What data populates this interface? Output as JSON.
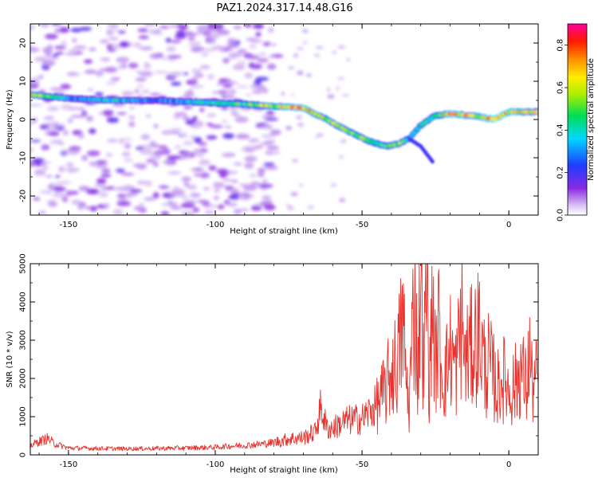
{
  "title": "PAZ1.2024.317.14.48.G16",
  "chart_data": [
    {
      "type": "heatmap",
      "xlabel": "Height of straight line (km)",
      "ylabel": "Frequency (Hz)",
      "xlim": [
        -163,
        10
      ],
      "ylim": [
        -25,
        25
      ],
      "xticks": [
        -150,
        -100,
        -50,
        0
      ],
      "yticks": [
        -20,
        -10,
        0,
        10,
        20
      ],
      "colorbar": {
        "label": "Normalized spectral amplitude",
        "range": [
          0,
          0.9
        ],
        "ticks": [
          0.0,
          0.2,
          0.4,
          0.6,
          0.8
        ],
        "colormap": "rainbow (white-violet-blue-cyan-green-yellow-orange-red-magenta)"
      },
      "noise_region_x": [
        -163,
        -79
      ],
      "ridge": {
        "x": [
          -163,
          -150,
          -135,
          -120,
          -105,
          -90,
          -80,
          -70,
          -62,
          -55,
          -48,
          -42,
          -38,
          -34,
          -30,
          -25,
          -20,
          -12,
          -5,
          0,
          5,
          10
        ],
        "frequency": [
          6.5,
          5.5,
          5,
          5,
          4.5,
          4,
          3.5,
          3,
          0,
          -3,
          -5.5,
          -7,
          -6.5,
          -5,
          -1.5,
          1,
          1.5,
          1,
          0,
          2,
          2,
          2
        ],
        "amplitude": [
          0.6,
          0.3,
          0.35,
          0.25,
          0.4,
          0.45,
          0.6,
          0.7,
          0.55,
          0.5,
          0.5,
          0.45,
          0.55,
          0.4,
          0.4,
          0.45,
          0.7,
          0.6,
          0.75,
          0.7,
          0.6,
          0.55
        ]
      },
      "branch": {
        "x": [
          -34,
          -30,
          -26
        ],
        "frequency": [
          -5,
          -7,
          -11
        ]
      }
    },
    {
      "type": "line",
      "xlabel": "Height of straight line (km)",
      "ylabel": "SNR (10 * v/v)",
      "xlim": [
        -163,
        10
      ],
      "ylim": [
        0,
        5000
      ],
      "xticks": [
        -150,
        -100,
        -50,
        0
      ],
      "yticks": [
        0,
        1000,
        2000,
        3000,
        4000,
        5000
      ],
      "color": "#e8322d",
      "series": [
        {
          "x": [
            -163,
            -160,
            -157,
            -155,
            -150,
            -140,
            -130,
            -120,
            -110,
            -100,
            -95,
            -90,
            -85,
            -80,
            -75,
            -70,
            -66,
            -64,
            -62,
            -60,
            -55,
            -50,
            -45,
            -42,
            -40,
            -38,
            -36,
            -35,
            -34,
            -33,
            -32,
            -31,
            -30,
            -29,
            -28,
            -27,
            -26,
            -25,
            -24,
            -23,
            -22,
            -21,
            -20,
            -18,
            -16,
            -15,
            -14,
            -12,
            -10,
            -8,
            -7,
            -5,
            -4,
            -3,
            -2,
            -1,
            0,
            2,
            4,
            6,
            7,
            8,
            10
          ],
          "y": [
            250,
            350,
            430,
            300,
            180,
            170,
            160,
            170,
            180,
            200,
            230,
            250,
            280,
            320,
            420,
            450,
            600,
            1250,
            700,
            700,
            900,
            950,
            1300,
            1700,
            2200,
            2400,
            3500,
            2000,
            1200,
            3000,
            4200,
            2000,
            5000,
            2200,
            4500,
            1800,
            4200,
            2200,
            3300,
            2400,
            2000,
            2300,
            2800,
            2200,
            3600,
            2500,
            2600,
            2900,
            3200,
            2200,
            2400,
            2000,
            1700,
            1900,
            2000,
            1900,
            1700,
            1800,
            2300,
            1700,
            2700,
            1800,
            2000
          ]
        }
      ]
    }
  ]
}
